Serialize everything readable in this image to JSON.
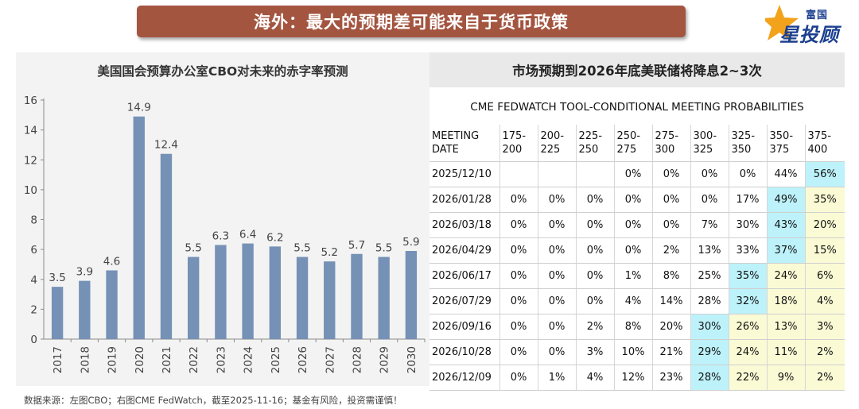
{
  "header": {
    "title": "海外：最大的预期差可能来自于货币政策",
    "logo_top": "富国",
    "logo_bottom": "星投顾"
  },
  "chart_data": {
    "type": "bar",
    "title": "美国国会预算办公室CBO对未来的赤字率预测",
    "categories": [
      "2017",
      "2018",
      "2019",
      "2020",
      "2021",
      "2022",
      "2023",
      "2024",
      "2025",
      "2026",
      "2027",
      "2028",
      "2029",
      "2030"
    ],
    "values": [
      3.5,
      3.9,
      4.6,
      14.9,
      12.4,
      5.5,
      6.3,
      6.4,
      6.2,
      5.5,
      5.2,
      5.7,
      5.5,
      5.9
    ],
    "value_labels": [
      "3.5",
      "3.9",
      "4.6",
      "14.9",
      "12.4",
      "5.5",
      "6.3",
      "6.4",
      "6.2",
      "5.5",
      "5.2",
      "5.7",
      "5.5",
      "5.9"
    ],
    "ylim": [
      0,
      16
    ],
    "yticks": [
      0,
      2,
      4,
      6,
      8,
      10,
      12,
      14,
      16
    ],
    "ytick_labels": [
      "0",
      "2",
      "4",
      "6",
      "8",
      "10",
      "12",
      "14",
      "16"
    ],
    "bar_color": "#7591b6",
    "grid": false,
    "legend": "none"
  },
  "table": {
    "title": "市场预期到2026年底美联储将降息2~3次",
    "subtitle": "CME FEDWATCH TOOL-CONDITIONAL MEETING PROBABILITIES",
    "headers": [
      [
        "MEETING",
        "DATE"
      ],
      [
        "175-",
        "200"
      ],
      [
        "200-",
        "225"
      ],
      [
        "225-",
        "250"
      ],
      [
        "250-",
        "275"
      ],
      [
        "275-",
        "300"
      ],
      [
        "300-",
        "325"
      ],
      [
        "325-",
        "350"
      ],
      [
        "350-",
        "375"
      ],
      [
        "375-",
        "400"
      ]
    ],
    "rows": [
      {
        "date": "2025/12/10",
        "cells": [
          "",
          "",
          "",
          "0%",
          "0%",
          "0%",
          "0%",
          "44%",
          "56%"
        ],
        "hl": [
          "",
          "",
          "",
          "",
          "",
          "",
          "",
          "",
          "b"
        ]
      },
      {
        "date": "2026/01/28",
        "cells": [
          "0%",
          "0%",
          "0%",
          "0%",
          "0%",
          "0%",
          "17%",
          "49%",
          "35%"
        ],
        "hl": [
          "",
          "",
          "",
          "",
          "",
          "",
          "",
          "b",
          "y"
        ]
      },
      {
        "date": "2026/03/18",
        "cells": [
          "0%",
          "0%",
          "0%",
          "0%",
          "0%",
          "7%",
          "30%",
          "43%",
          "20%"
        ],
        "hl": [
          "",
          "",
          "",
          "",
          "",
          "",
          "",
          "b",
          "y"
        ]
      },
      {
        "date": "2026/04/29",
        "cells": [
          "0%",
          "0%",
          "0%",
          "0%",
          "2%",
          "13%",
          "33%",
          "37%",
          "15%"
        ],
        "hl": [
          "",
          "",
          "",
          "",
          "",
          "",
          "",
          "b",
          "y"
        ]
      },
      {
        "date": "2026/06/17",
        "cells": [
          "0%",
          "0%",
          "0%",
          "1%",
          "8%",
          "25%",
          "35%",
          "24%",
          "6%"
        ],
        "hl": [
          "",
          "",
          "",
          "",
          "",
          "",
          "b",
          "y",
          "y"
        ]
      },
      {
        "date": "2026/07/29",
        "cells": [
          "0%",
          "0%",
          "0%",
          "4%",
          "14%",
          "28%",
          "32%",
          "18%",
          "4%"
        ],
        "hl": [
          "",
          "",
          "",
          "",
          "",
          "",
          "b",
          "y",
          "y"
        ]
      },
      {
        "date": "2026/09/16",
        "cells": [
          "0%",
          "0%",
          "2%",
          "8%",
          "20%",
          "30%",
          "26%",
          "13%",
          "3%"
        ],
        "hl": [
          "",
          "",
          "",
          "",
          "",
          "b",
          "y",
          "y",
          "y"
        ]
      },
      {
        "date": "2026/10/28",
        "cells": [
          "0%",
          "0%",
          "3%",
          "10%",
          "21%",
          "29%",
          "24%",
          "11%",
          "2%"
        ],
        "hl": [
          "",
          "",
          "",
          "",
          "",
          "b",
          "y",
          "y",
          "y"
        ]
      },
      {
        "date": "2026/12/09",
        "cells": [
          "0%",
          "1%",
          "4%",
          "12%",
          "23%",
          "28%",
          "22%",
          "9%",
          "2%"
        ],
        "hl": [
          "",
          "",
          "",
          "",
          "",
          "b",
          "y",
          "y",
          "y"
        ]
      }
    ],
    "highlight_colors": {
      "b": "#bdf2fa",
      "y": "#fafbd5"
    }
  },
  "footer": {
    "source": "数据来源：左图CBO；右图CME FedWatch，截至2025-11-16；基金有风险，投资需谨慎！"
  }
}
